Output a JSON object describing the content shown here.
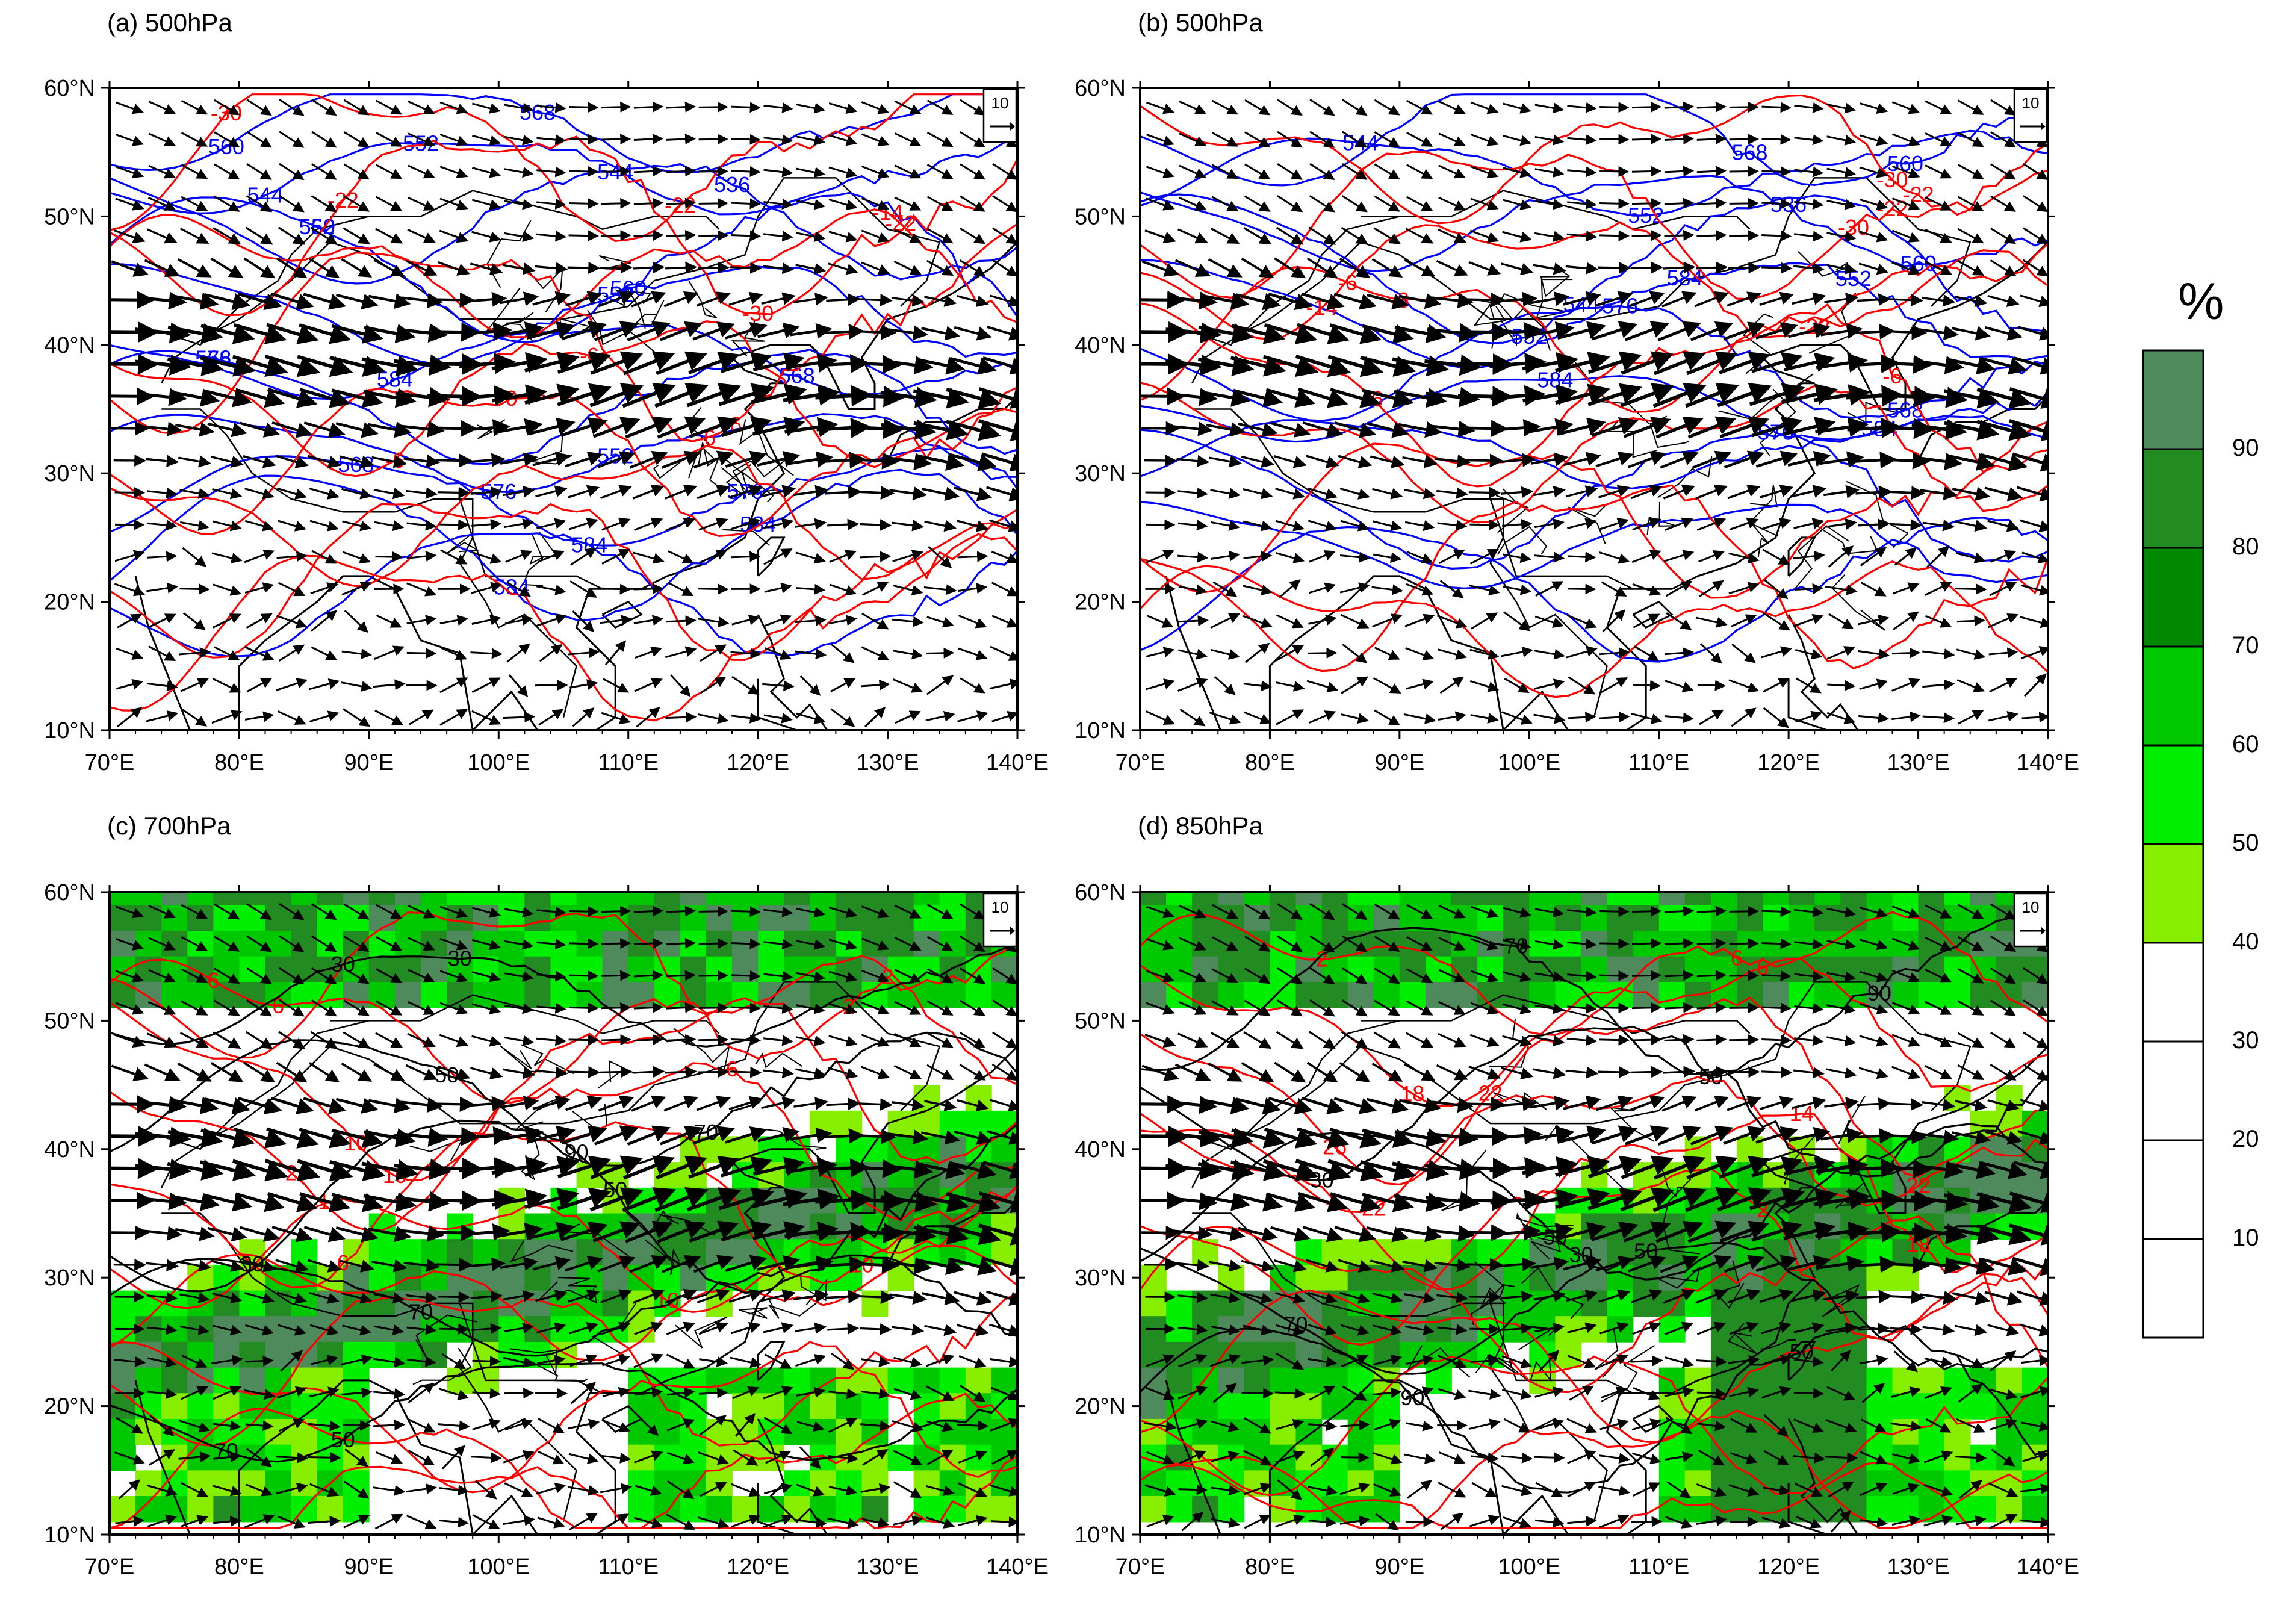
{
  "panels": [
    {
      "id": "a",
      "title": "(a) 500hPa",
      "shaded": false,
      "level": "500"
    },
    {
      "id": "b",
      "title": "(b) 500hPa",
      "shaded": false,
      "level": "500"
    },
    {
      "id": "c",
      "title": "(c) 700hPa",
      "shaded": true,
      "level": "700"
    },
    {
      "id": "d",
      "title": "(d) 850hPa",
      "shaded": true,
      "level": "850"
    }
  ],
  "axes": {
    "lon_labels": [
      "70°E",
      "80°E",
      "90°E",
      "100°E",
      "110°E",
      "120°E",
      "130°E",
      "140°E"
    ],
    "lat_labels": [
      "10°N",
      "20°N",
      "30°N",
      "40°N",
      "50°N",
      "60°N"
    ],
    "lon_range": [
      70,
      140
    ],
    "lat_range": [
      10,
      60
    ]
  },
  "reference_vector": {
    "label": "10"
  },
  "colorbar": {
    "unit": "%",
    "ticks": [
      "10",
      "20",
      "30",
      "40",
      "50",
      "60",
      "70",
      "80",
      "90"
    ],
    "colors": [
      "#ffffff",
      "#ffffff",
      "#ffffff",
      "#ffffff",
      "#88ee00",
      "#00ee00",
      "#00c800",
      "#008800",
      "#228b22",
      "#4f8a5c"
    ]
  },
  "contour_labels": {
    "a": {
      "blue": [
        "568",
        "560",
        "552",
        "544",
        "536",
        "544",
        "560",
        "552",
        "552",
        "560",
        "584",
        "568",
        "576",
        "568",
        "552",
        "576",
        "576",
        "568",
        "584",
        "584",
        "584"
      ],
      "red": [
        "-22",
        "-30",
        "-30",
        "-22",
        "-22",
        "-14",
        "-6",
        "-6",
        "-6",
        "-6",
        "0"
      ]
    },
    "b": {
      "blue": [
        "568",
        "560",
        "552",
        "544",
        "536",
        "560",
        "552",
        "544",
        "552",
        "584",
        "576",
        "568",
        "576",
        "584",
        "584"
      ],
      "red": [
        "-22",
        "-30",
        "-30",
        "-22",
        "-22",
        "-14",
        "-6",
        "-6",
        "-6",
        "-6"
      ]
    },
    "c": {
      "black": [
        "30",
        "30",
        "50",
        "70",
        "90",
        "50",
        "70",
        "30",
        "70",
        "50"
      ],
      "red": [
        "2",
        "2",
        "6",
        "6",
        "10",
        "10",
        "6",
        "2",
        "10",
        "6",
        "10",
        "14"
      ]
    },
    "d": {
      "black": [
        "90",
        "70",
        "50",
        "30",
        "30",
        "50",
        "50",
        "70",
        "90",
        "50",
        "70",
        "30"
      ],
      "red": [
        "6",
        "2",
        "6",
        "18",
        "22",
        "26",
        "22",
        "22",
        "18",
        "14",
        "2"
      ]
    }
  },
  "colors": {
    "blue_contour": "#0000ff",
    "red_contour": "#ff0000",
    "black": "#000000"
  }
}
